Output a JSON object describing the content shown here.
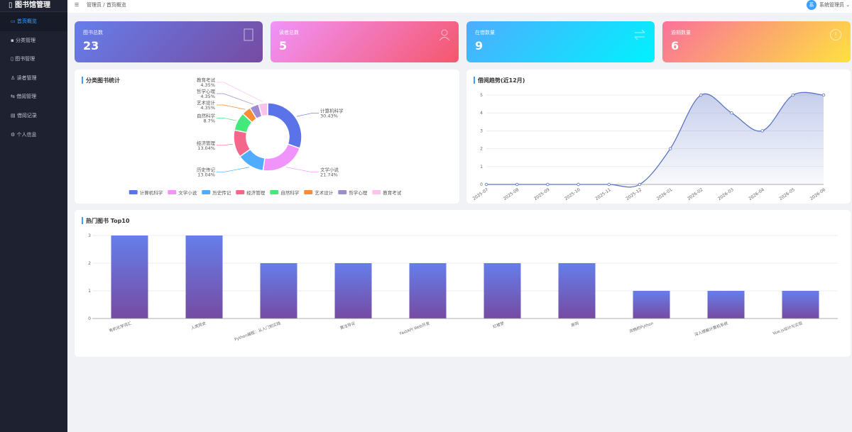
{
  "sidebar": {
    "title": "图书馆管理",
    "menu": [
      "首页概览",
      "分类管理",
      "图书管理",
      "读者管理",
      "借阅管理",
      "借阅记录",
      "个人信息"
    ]
  },
  "header": {
    "breadcrumb": [
      "管理员",
      "首页概览"
    ],
    "avatar": "系",
    "user": "系统管理员"
  },
  "cards": [
    {
      "label": "图书总数",
      "value": "23"
    },
    {
      "label": "读者总数",
      "value": "5"
    },
    {
      "label": "在借数量",
      "value": "9"
    },
    {
      "label": "逾期数量",
      "value": "6"
    }
  ],
  "chart_data": [
    {
      "type": "pie",
      "title": "分类图书统计",
      "categories": [
        "计算机科学",
        "文学小说",
        "历史传记",
        "经济管理",
        "自然科学",
        "艺术设计",
        "哲学心理",
        "教育考试"
      ],
      "values": [
        30.43,
        21.74,
        13.04,
        13.04,
        8.7,
        4.35,
        4.35,
        4.35
      ],
      "value_labels": [
        "30.43%",
        "21.74%",
        "13.04%",
        "13.04%",
        "8.7%",
        "4.35%",
        "4.35%",
        "4.35%"
      ],
      "colors": [
        "#5b73e8",
        "#f093fb",
        "#4facfe",
        "#f5678a",
        "#43e97b",
        "#fa8c35",
        "#9f8bd4",
        "#fbc2eb"
      ]
    },
    {
      "type": "line",
      "title": "借阅趋势(近12月)",
      "x": [
        "2025-07",
        "2025-08",
        "2025-09",
        "2025-10",
        "2025-11",
        "2025-12",
        "2026-01",
        "2026-02",
        "2026-03",
        "2026-04",
        "2026-05",
        "2026-06"
      ],
      "values": [
        0,
        0,
        0,
        0,
        0,
        0,
        2,
        5,
        4,
        3,
        5,
        5
      ],
      "ylim": [
        0,
        5
      ],
      "yticks": [
        0,
        1,
        2,
        3,
        4,
        5
      ],
      "grid": true,
      "color": "#5b73c6"
    },
    {
      "type": "bar",
      "title": "热门图书 Top10",
      "categories": [
        "有机化学词汇",
        "人类简史",
        "Python编程：从入门到实践",
        "算法导论",
        "FastAPI Web开发",
        "红楼梦",
        "原则",
        "流畅的Python",
        "深入理解计算机系统",
        "Vue.js设计与实现"
      ],
      "values": [
        3,
        3,
        2,
        2,
        2,
        2,
        2,
        1,
        1,
        1
      ],
      "ylim": [
        0,
        3
      ],
      "yticks": [
        0,
        1,
        2,
        3
      ],
      "grid": true,
      "color": "#667eea"
    }
  ]
}
